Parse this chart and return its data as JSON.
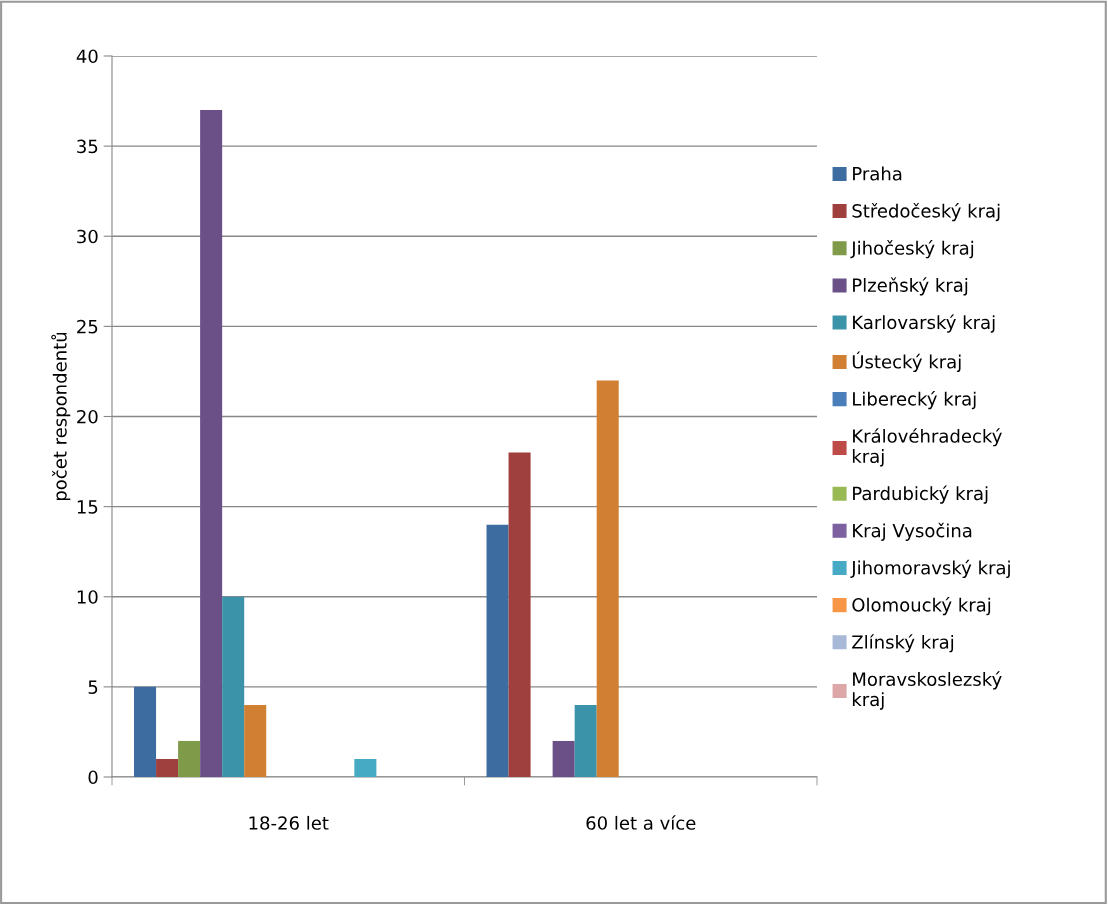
{
  "chart_data": {
    "type": "bar",
    "ylabel": "počet respondentů",
    "categories": [
      "18-26 let",
      "60 let a více"
    ],
    "ylim": [
      0,
      40
    ],
    "yticks": [
      0,
      5,
      10,
      15,
      20,
      25,
      30,
      35,
      40
    ],
    "grid": "y",
    "legend": "right",
    "series": [
      {
        "name": "Praha",
        "color": "#3c6ca0",
        "values": [
          5,
          14
        ]
      },
      {
        "name": "Středočeský kraj",
        "color": "#a0403e",
        "values": [
          1,
          18
        ]
      },
      {
        "name": "Jihočeský kraj",
        "color": "#7f9a48",
        "values": [
          2,
          0
        ]
      },
      {
        "name": "Plzeňský kraj",
        "color": "#6a5087",
        "values": [
          37,
          2
        ]
      },
      {
        "name": "Karlovarský kraj",
        "color": "#3b93a9",
        "values": [
          10,
          4
        ]
      },
      {
        "name": "Ústecký kraj",
        "color": "#d07f33",
        "values": [
          4,
          22
        ]
      },
      {
        "name": "Liberecký kraj",
        "color": "#4a7ebb",
        "values": [
          0,
          0
        ]
      },
      {
        "name": "Královéhradecký kraj",
        "color": "#be4b48",
        "values": [
          0,
          0
        ]
      },
      {
        "name": "Pardubický kraj",
        "color": "#98b954",
        "values": [
          0,
          0
        ]
      },
      {
        "name": "Kraj Vysočina",
        "color": "#7d60a0",
        "values": [
          0,
          0
        ]
      },
      {
        "name": "Jihomoravský kraj",
        "color": "#46aac5",
        "values": [
          1,
          0
        ]
      },
      {
        "name": "Olomoucký kraj",
        "color": "#f79646",
        "values": [
          0,
          0
        ]
      },
      {
        "name": "Zlínský kraj",
        "color": "#a8b9d8",
        "values": [
          0,
          0
        ]
      },
      {
        "name": "Moravskoslezský kraj",
        "color": "#dca7a6",
        "values": [
          0,
          0
        ]
      }
    ]
  }
}
